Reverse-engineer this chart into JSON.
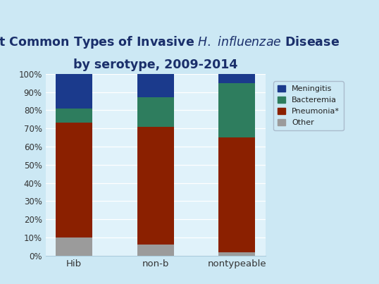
{
  "title_line1": "Most Common Types of Invasive  H. influenzae  Disease",
  "title_line2": "by serotype, 2009-2014",
  "categories": [
    "Hib",
    "non-b",
    "nontypeable"
  ],
  "series": [
    {
      "name": "Other",
      "values": [
        10,
        6,
        2
      ],
      "color": "#9b9b9b"
    },
    {
      "name": "Pneumonia*",
      "values": [
        63,
        65,
        63
      ],
      "color": "#8B2000"
    },
    {
      "name": "Bacteremia",
      "values": [
        8,
        16,
        30
      ],
      "color": "#2E7D5E"
    },
    {
      "name": "Meningitis",
      "values": [
        19,
        13,
        5
      ],
      "color": "#1B3A8C"
    }
  ],
  "ylim": [
    0,
    100
  ],
  "yticks": [
    0,
    10,
    20,
    30,
    40,
    50,
    60,
    70,
    80,
    90,
    100
  ],
  "ytick_labels": [
    "0%",
    "10%",
    "20%",
    "30%",
    "40%",
    "50%",
    "60%",
    "70%",
    "80%",
    "90%",
    "100%"
  ],
  "bar_width": 0.45,
  "background_color": "#cce8f4",
  "plot_bg_color": "#e0f2fa",
  "title_color": "#1a2f6b",
  "axis_color": "#aaccdd",
  "legend_fontsize": 8,
  "title_fontsize": 12.5,
  "tick_fontsize": 8.5,
  "xlabel_fontsize": 9.5
}
